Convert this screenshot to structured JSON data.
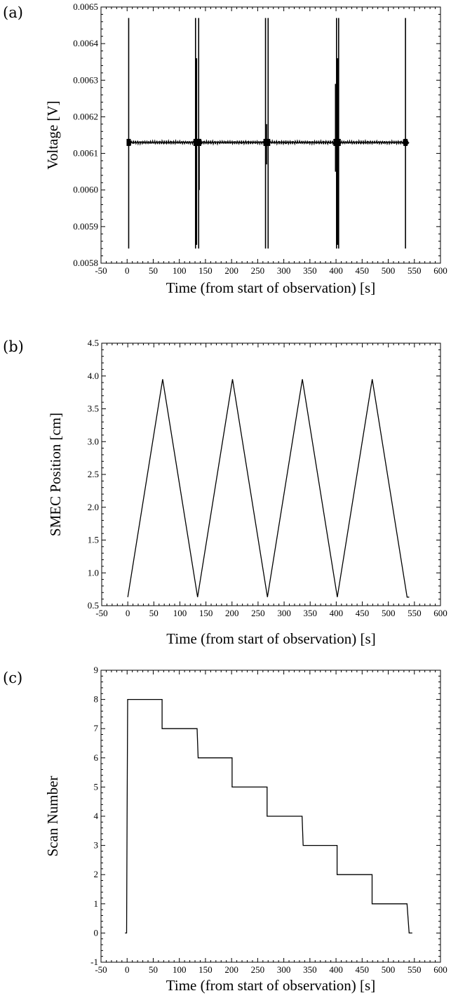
{
  "chart_data": [
    {
      "panel_label": "(a)",
      "type": "line",
      "xlabel": "Time (from start of observation) [s]",
      "ylabel": "Voltage [V]",
      "xlim": [
        -50,
        600
      ],
      "ylim": [
        0.0058,
        0.0065
      ],
      "xticks": [
        -50,
        0,
        50,
        100,
        150,
        200,
        250,
        300,
        350,
        400,
        450,
        500,
        550,
        600
      ],
      "xtick_labels": [
        "-50",
        "0",
        "50",
        "100",
        "150",
        "200",
        "250",
        "300",
        "350",
        "400",
        "450",
        "500",
        "550",
        "600"
      ],
      "yticks": [
        0.0058,
        0.0059,
        0.006,
        0.0061,
        0.0062,
        0.0063,
        0.0064,
        0.0065
      ],
      "ytick_labels": [
        "0.0058",
        "0.0059",
        "0.0060",
        "0.0061",
        "0.0062",
        "0.0063",
        "0.0064",
        "0.0065"
      ],
      "grid": false,
      "baseline": {
        "x_range": [
          0,
          540
        ],
        "y": 0.00613
      },
      "spikes": [
        {
          "x": 3,
          "y_min": 0.00584,
          "y_max": 0.00647
        },
        {
          "x": 131,
          "y_min": 0.00584,
          "y_max": 0.00647
        },
        {
          "x": 133,
          "y_min": 0.00585,
          "y_max": 0.00636
        },
        {
          "x": 137,
          "y_min": 0.00584,
          "y_max": 0.00647
        },
        {
          "x": 138,
          "y_min": 0.006,
          "y_max": 0.00612
        },
        {
          "x": 265,
          "y_min": 0.00584,
          "y_max": 0.00647
        },
        {
          "x": 267,
          "y_min": 0.00607,
          "y_max": 0.00618
        },
        {
          "x": 270,
          "y_min": 0.00584,
          "y_max": 0.00647
        },
        {
          "x": 399,
          "y_min": 0.00605,
          "y_max": 0.00629
        },
        {
          "x": 401,
          "y_min": 0.00584,
          "y_max": 0.00647
        },
        {
          "x": 403,
          "y_min": 0.00585,
          "y_max": 0.00636
        },
        {
          "x": 405,
          "y_min": 0.00584,
          "y_max": 0.00647
        },
        {
          "x": 533,
          "y_min": 0.00584,
          "y_max": 0.00647
        }
      ]
    },
    {
      "panel_label": "(b)",
      "type": "line",
      "xlabel": "Time (from start of observation) [s]",
      "ylabel": "SMEC Position [cm]",
      "xlim": [
        -50,
        600
      ],
      "ylim": [
        0.5,
        4.5
      ],
      "xticks": [
        -50,
        0,
        50,
        100,
        150,
        200,
        250,
        300,
        350,
        400,
        450,
        500,
        550,
        600
      ],
      "xtick_labels": [
        "-50",
        "0",
        "50",
        "100",
        "150",
        "200",
        "250",
        "300",
        "350",
        "400",
        "450",
        "500",
        "550",
        "600"
      ],
      "yticks": [
        0.5,
        1.0,
        1.5,
        2.0,
        2.5,
        3.0,
        3.5,
        4.0,
        4.5
      ],
      "ytick_labels": [
        "0.5",
        "1.0",
        "1.5",
        "2.0",
        "2.5",
        "3.0",
        "3.5",
        "4.0",
        "4.5"
      ],
      "grid": false,
      "series": [
        {
          "x": [
            0,
            67,
            134,
            201,
            268,
            335,
            402,
            469,
            536,
            540
          ],
          "y": [
            0.63,
            3.95,
            0.63,
            3.95,
            0.63,
            3.95,
            0.63,
            3.95,
            0.63,
            0.63
          ]
        }
      ]
    },
    {
      "panel_label": "(c)",
      "type": "line",
      "xlabel": "Time (from start of observation) [s]",
      "ylabel": "Scan Number",
      "xlim": [
        -50,
        600
      ],
      "ylim": [
        -1,
        9
      ],
      "xticks": [
        -50,
        0,
        50,
        100,
        150,
        200,
        250,
        300,
        350,
        400,
        450,
        500,
        550,
        600
      ],
      "xtick_labels": [
        "-50",
        "0",
        "50",
        "100",
        "150",
        "200",
        "250",
        "300",
        "350",
        "400",
        "450",
        "500",
        "550",
        "600"
      ],
      "yticks": [
        -1,
        0,
        1,
        2,
        3,
        4,
        5,
        6,
        7,
        8,
        9
      ],
      "ytick_labels": [
        "-1",
        "0",
        "1",
        "2",
        "3",
        "4",
        "5",
        "6",
        "7",
        "8",
        "9"
      ],
      "grid": false,
      "series": [
        {
          "x": [
            -4,
            -1,
            0,
            1,
            67,
            67,
            134,
            136,
            201,
            201,
            268,
            268,
            335,
            337,
            402,
            402,
            469,
            469,
            536,
            540,
            546
          ],
          "y": [
            0,
            0,
            4,
            8,
            8,
            7,
            7,
            6,
            6,
            5,
            5,
            4,
            4,
            3,
            3,
            2,
            2,
            1,
            1,
            0,
            0
          ]
        }
      ]
    }
  ]
}
